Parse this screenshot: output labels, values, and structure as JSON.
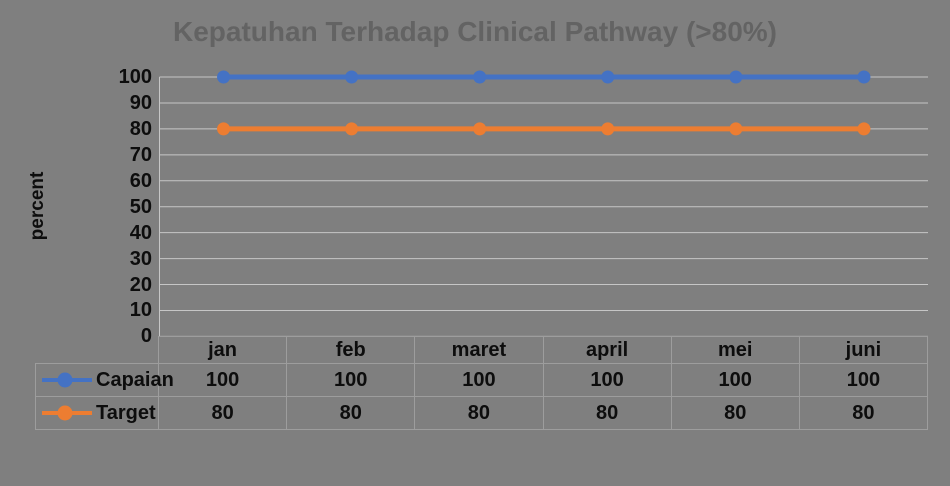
{
  "chart_data": {
    "type": "line",
    "title": "Kepatuhan Terhadap Clinical Pathway (>80%)",
    "categories": [
      "jan",
      "feb",
      "maret",
      "april",
      "mei",
      "juni"
    ],
    "series": [
      {
        "name": "Capaian",
        "values": [
          100,
          100,
          100,
          100,
          100,
          100
        ],
        "color": "#4472c4"
      },
      {
        "name": "Target",
        "values": [
          80,
          80,
          80,
          80,
          80,
          80
        ],
        "color": "#ed7d31"
      }
    ],
    "xlabel": "",
    "ylabel": "percent",
    "ylim": [
      0,
      100
    ],
    "ytick_step": 10,
    "yticks": [
      100,
      90,
      80,
      70,
      60,
      50,
      40,
      30,
      20,
      10,
      0
    ],
    "grid": true,
    "marker": "circle",
    "legend_position": "data-table-left",
    "data_table_shown": true
  },
  "colors": {
    "background": "#7f7f7f",
    "title_text": "#636363",
    "gridline": "#c6c6c6",
    "table_border": "#9d9d9d",
    "text": "#0d0d0d",
    "series_capaian": "#4472c4",
    "series_target": "#ed7d31"
  }
}
